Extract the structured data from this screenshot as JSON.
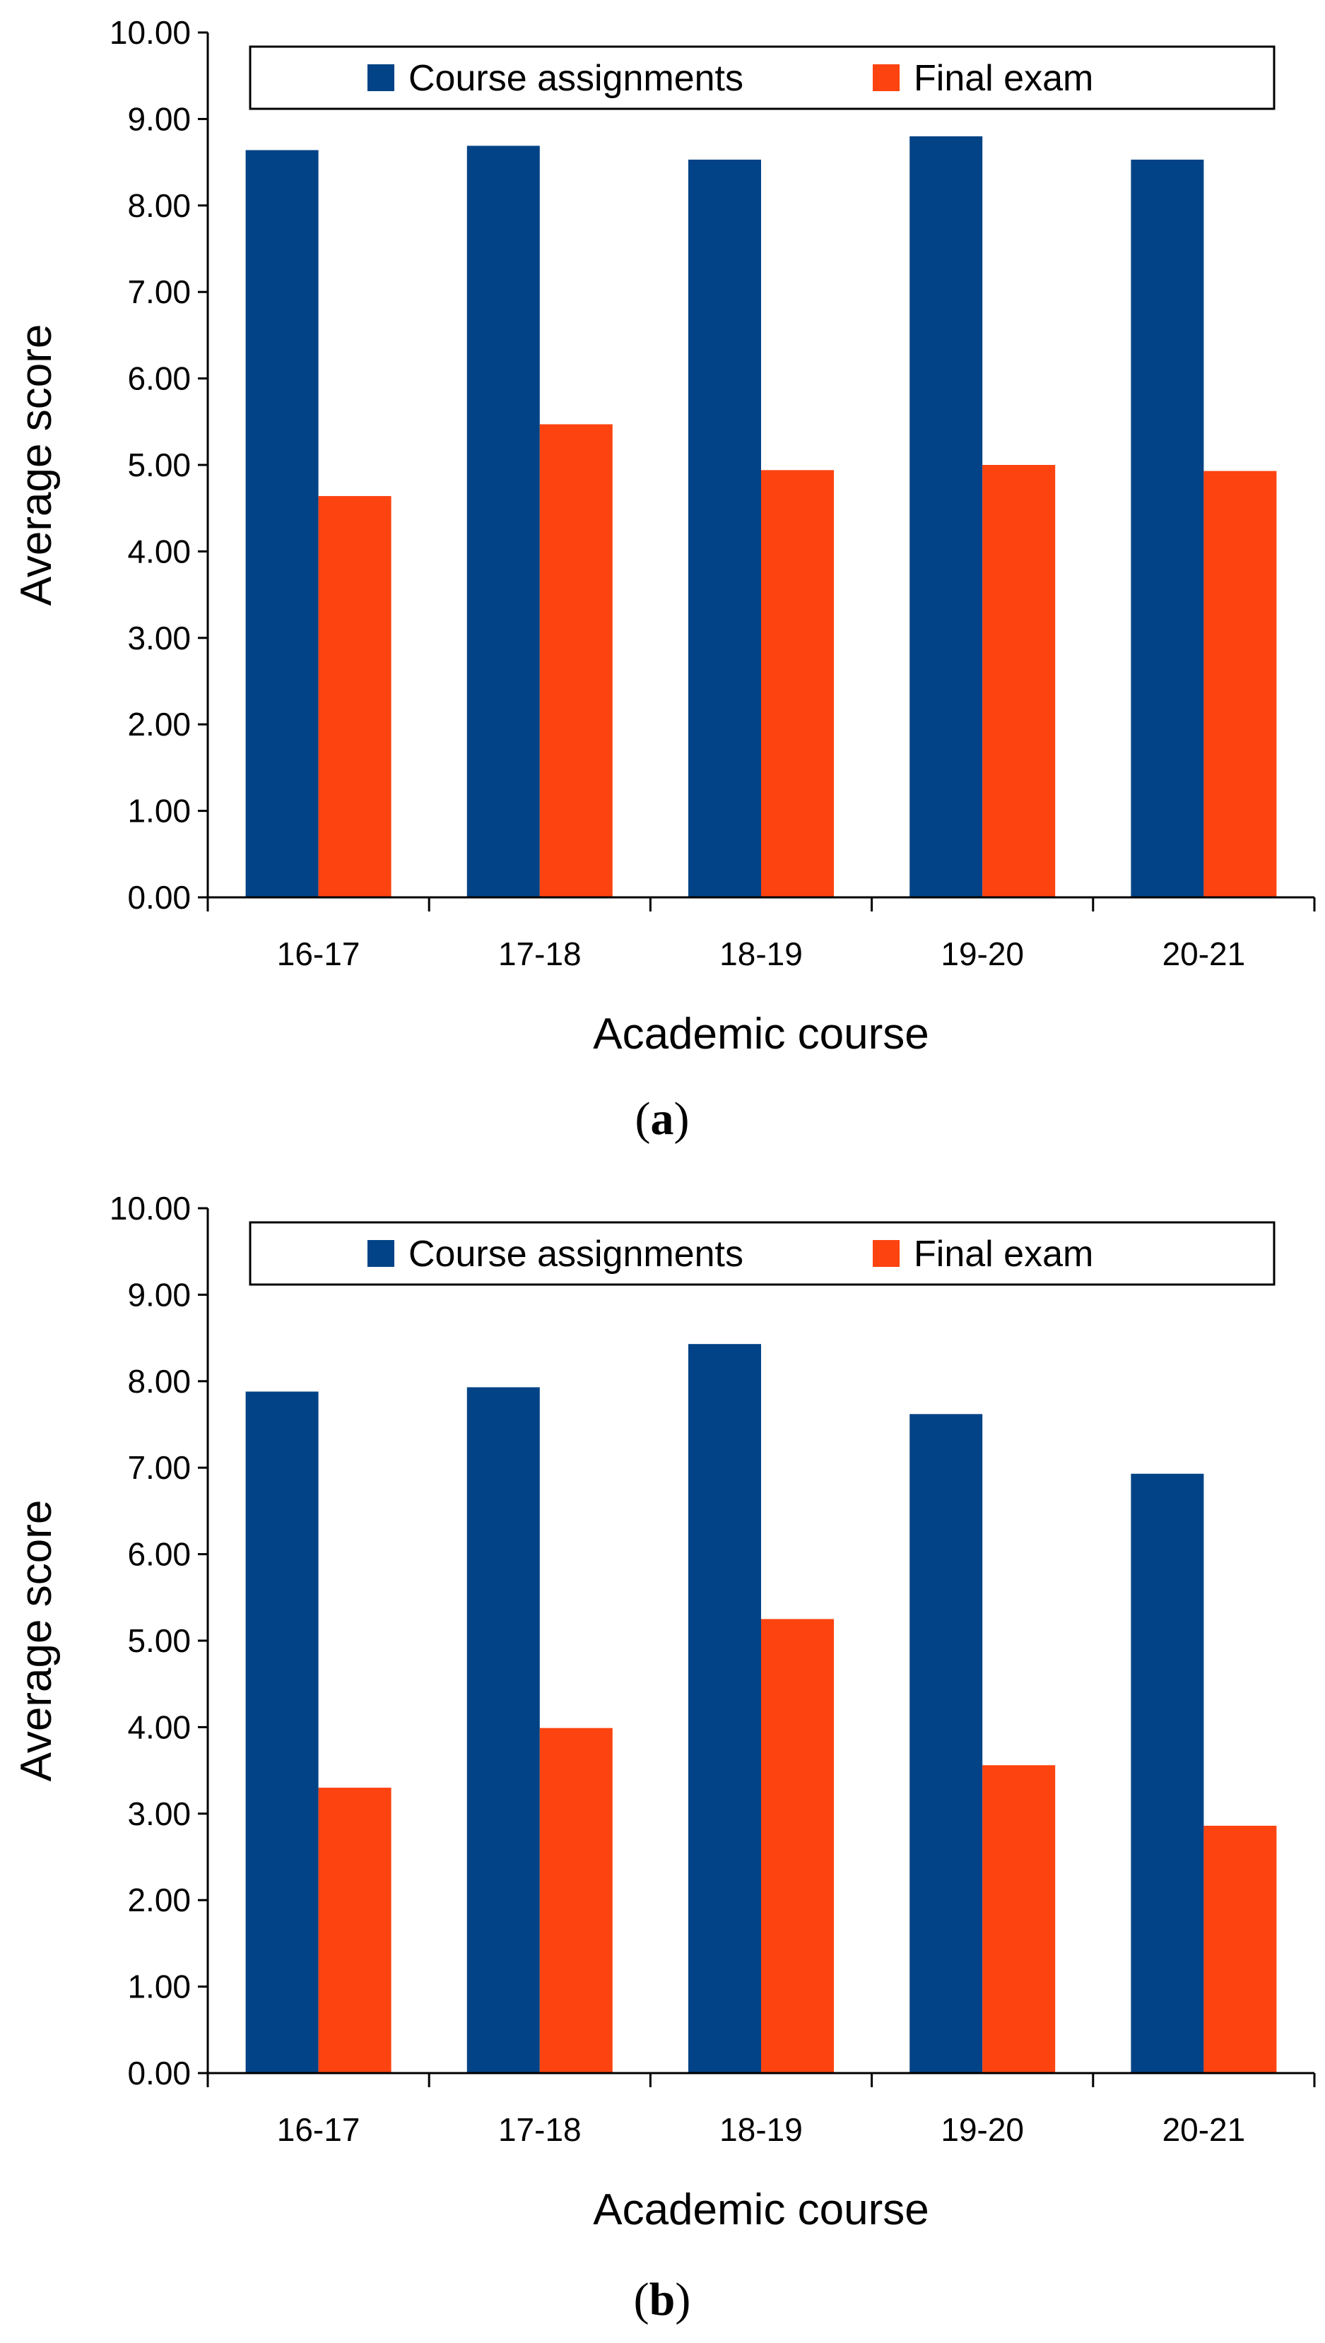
{
  "colors": {
    "course_assignments": "#014386",
    "final_exam": "#fd4310",
    "axis": "#000000"
  },
  "chart_data": [
    {
      "type": "bar",
      "panel": "a",
      "caption": {
        "open": "(",
        "letter": "a",
        "close": ")"
      },
      "categories": [
        "16-17",
        "17-18",
        "18-19",
        "19-20",
        "20-21"
      ],
      "series": [
        {
          "name": "Course assignments",
          "values": [
            8.64,
            8.69,
            8.53,
            8.8,
            8.53
          ]
        },
        {
          "name": "Final exam",
          "values": [
            4.64,
            5.47,
            4.94,
            5.0,
            4.93
          ]
        }
      ],
      "xlabel": "Academic course",
      "ylabel": "Average score",
      "ylim": [
        0,
        10
      ],
      "yticks": [
        "0.00",
        "1.00",
        "2.00",
        "3.00",
        "4.00",
        "5.00",
        "6.00",
        "7.00",
        "8.00",
        "9.00",
        "10.00"
      ],
      "legend": "top",
      "grid": false
    },
    {
      "type": "bar",
      "panel": "b",
      "caption": {
        "open": "(",
        "letter": "b",
        "close": ")"
      },
      "categories": [
        "16-17",
        "17-18",
        "18-19",
        "19-20",
        "20-21"
      ],
      "series": [
        {
          "name": "Course assignments",
          "values": [
            7.88,
            7.93,
            8.43,
            7.62,
            6.93
          ]
        },
        {
          "name": "Final exam",
          "values": [
            3.3,
            3.99,
            5.25,
            3.56,
            2.86
          ]
        }
      ],
      "xlabel": "Academic course",
      "ylabel": "Average score",
      "ylim": [
        0,
        10
      ],
      "yticks": [
        "0.00",
        "1.00",
        "2.00",
        "3.00",
        "4.00",
        "5.00",
        "6.00",
        "7.00",
        "8.00",
        "9.00",
        "10.00"
      ],
      "legend": "top",
      "grid": false
    }
  ]
}
